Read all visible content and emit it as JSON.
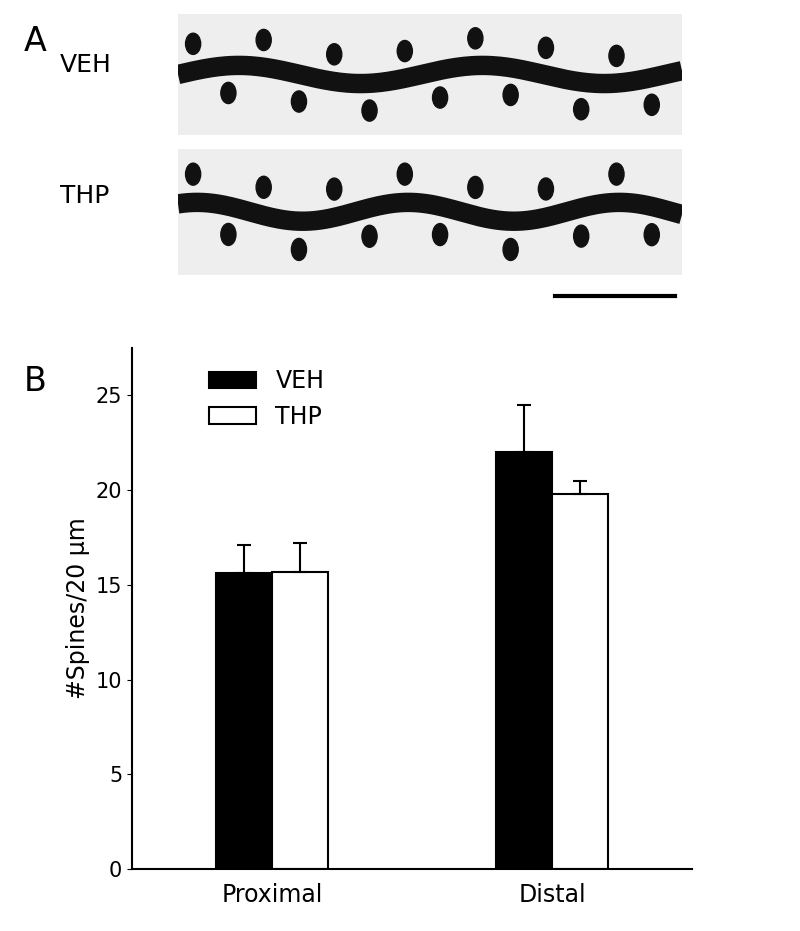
{
  "chart_data": {
    "type": "bar",
    "panel_label": "B",
    "categories": [
      "Proximal",
      "Distal"
    ],
    "series": [
      {
        "name": "VEH",
        "color": "#000000",
        "values": [
          15.6,
          22.0
        ],
        "errors": [
          1.5,
          2.5
        ]
      },
      {
        "name": "THP",
        "color": "#ffffff",
        "values": [
          15.7,
          19.8
        ],
        "errors": [
          1.5,
          0.7
        ]
      }
    ],
    "y_label": "#Spines/20 µm",
    "ylim": [
      0,
      27.5
    ],
    "yticks": [
      0,
      5,
      10,
      15,
      20,
      25
    ],
    "legend": "upper left",
    "grid": false
  },
  "panel_a": {
    "panel_label": "A",
    "image_labels": [
      "VEH",
      "THP"
    ]
  }
}
